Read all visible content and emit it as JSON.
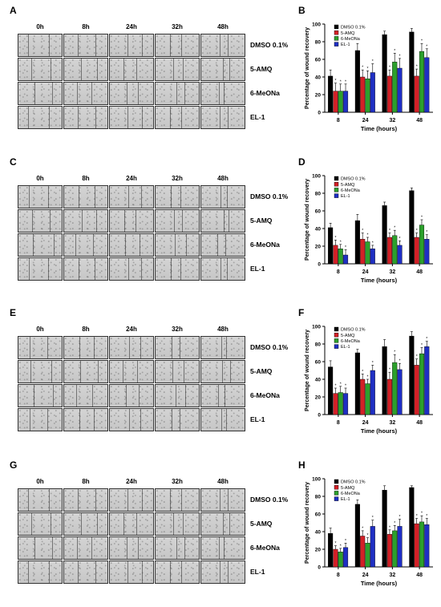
{
  "time_points": [
    "0h",
    "8h",
    "24h",
    "32h",
    "48h"
  ],
  "treatments": [
    "DMSO 0.1%",
    "5-AMQ",
    "6-MeONa",
    "EL-1"
  ],
  "colors": {
    "DMSO 0.1%": "#000000",
    "5-AMQ": "#d32027",
    "6-MeONa": "#2ca02c",
    "EL-1": "#1f2fc4"
  },
  "panels": [
    {
      "image_letter": "A",
      "chart_letter": "B"
    },
    {
      "image_letter": "C",
      "chart_letter": "D"
    },
    {
      "image_letter": "E",
      "chart_letter": "F"
    },
    {
      "image_letter": "G",
      "chart_letter": "H"
    }
  ],
  "chart_data": [
    {
      "type": "bar",
      "ylabel": "Percentage of wound recovery",
      "xlabel": "Time (hours)",
      "categories": [
        "8",
        "24",
        "32",
        "48"
      ],
      "ylim": [
        0,
        100
      ],
      "yticks": [
        0,
        20,
        40,
        60,
        80,
        100
      ],
      "legend_position": "top-left",
      "series": [
        {
          "name": "DMSO 0.1%",
          "values": [
            41,
            70,
            88,
            91
          ],
          "errors": [
            7,
            8,
            4,
            4
          ],
          "sig": [
            false,
            false,
            false,
            false
          ]
        },
        {
          "name": "5-AMQ",
          "values": [
            24,
            40,
            41,
            41
          ],
          "errors": [
            9,
            8,
            7,
            8
          ],
          "sig": [
            true,
            true,
            true,
            true
          ]
        },
        {
          "name": "6-MeONa",
          "values": [
            24,
            38,
            57,
            69
          ],
          "errors": [
            8,
            9,
            10,
            9
          ],
          "sig": [
            true,
            true,
            true,
            true
          ]
        },
        {
          "name": "EL-1",
          "values": [
            24,
            45,
            50,
            62
          ],
          "errors": [
            8,
            10,
            11,
            10
          ],
          "sig": [
            true,
            true,
            true,
            true
          ]
        }
      ]
    },
    {
      "type": "bar",
      "ylabel": "Percentage of wound recovery",
      "xlabel": "Time (hours)",
      "categories": [
        "8",
        "24",
        "32",
        "48"
      ],
      "ylim": [
        0,
        100
      ],
      "yticks": [
        0,
        20,
        40,
        60,
        80,
        100
      ],
      "legend_position": "top-left",
      "series": [
        {
          "name": "DMSO 0.1%",
          "values": [
            41,
            49,
            66,
            83
          ],
          "errors": [
            5,
            7,
            4,
            3
          ],
          "sig": [
            false,
            false,
            false,
            false
          ]
        },
        {
          "name": "5-AMQ",
          "values": [
            21,
            28,
            30,
            30
          ],
          "errors": [
            6,
            7,
            5,
            5
          ],
          "sig": [
            true,
            true,
            true,
            true
          ]
        },
        {
          "name": "6-MeONa",
          "values": [
            17,
            25,
            32,
            44
          ],
          "errors": [
            5,
            5,
            6,
            6
          ],
          "sig": [
            true,
            true,
            true,
            true
          ]
        },
        {
          "name": "EL-1",
          "values": [
            10,
            17,
            21,
            28
          ],
          "errors": [
            6,
            4,
            5,
            5
          ],
          "sig": [
            true,
            true,
            true,
            true
          ]
        }
      ]
    },
    {
      "type": "bar",
      "ylabel": "Percentage of wound recovery",
      "xlabel": "Time (hours)",
      "categories": [
        "8",
        "24",
        "32",
        "48"
      ],
      "ylim": [
        0,
        100
      ],
      "yticks": [
        0,
        20,
        40,
        60,
        80,
        100
      ],
      "legend_position": "top-left",
      "series": [
        {
          "name": "DMSO 0.1%",
          "values": [
            54,
            70,
            77,
            89
          ],
          "errors": [
            7,
            4,
            8,
            5
          ],
          "sig": [
            false,
            false,
            false,
            false
          ]
        },
        {
          "name": "5-AMQ",
          "values": [
            24,
            40,
            40,
            56
          ],
          "errors": [
            6,
            6,
            8,
            7
          ],
          "sig": [
            true,
            true,
            true,
            true
          ]
        },
        {
          "name": "6-MeONa",
          "values": [
            25,
            35,
            59,
            69
          ],
          "errors": [
            7,
            5,
            9,
            7
          ],
          "sig": [
            true,
            true,
            true,
            true
          ]
        },
        {
          "name": "EL-1",
          "values": [
            24,
            50,
            51,
            77
          ],
          "errors": [
            6,
            6,
            7,
            6
          ],
          "sig": [
            true,
            true,
            true,
            true
          ]
        }
      ]
    },
    {
      "type": "bar",
      "ylabel": "Percentage of wound recovery",
      "xlabel": "Time (hours)",
      "categories": [
        "8",
        "24",
        "32",
        "48"
      ],
      "ylim": [
        0,
        100
      ],
      "yticks": [
        0,
        20,
        40,
        60,
        80,
        100
      ],
      "legend_position": "top-left",
      "series": [
        {
          "name": "DMSO 0.1%",
          "values": [
            38,
            71,
            87,
            90
          ],
          "errors": [
            6,
            5,
            5,
            2
          ],
          "sig": [
            false,
            false,
            false,
            false
          ]
        },
        {
          "name": "5-AMQ",
          "values": [
            20,
            35,
            37,
            49
          ],
          "errors": [
            4,
            6,
            5,
            6
          ],
          "sig": [
            true,
            true,
            true,
            true
          ]
        },
        {
          "name": "6-MeONa",
          "values": [
            17,
            27,
            41,
            51
          ],
          "errors": [
            4,
            6,
            6,
            7
          ],
          "sig": [
            true,
            true,
            true,
            true
          ]
        },
        {
          "name": "EL-1",
          "values": [
            22,
            46,
            46,
            48
          ],
          "errors": [
            5,
            7,
            8,
            7
          ],
          "sig": [
            true,
            true,
            true,
            true
          ]
        }
      ]
    }
  ]
}
